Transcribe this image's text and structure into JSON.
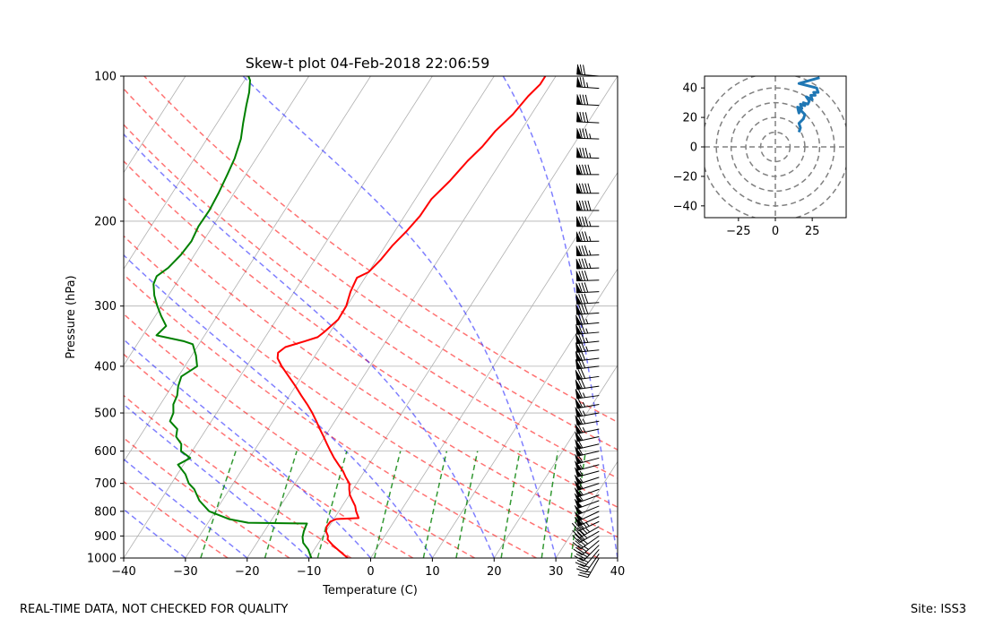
{
  "chart_data": [
    {
      "type": "line",
      "title": "Skew-t plot 04-Feb-2018 22:06:59",
      "xlabel": "Temperature (C)",
      "ylabel": "Pressure (hPa)",
      "xlim": [
        -40,
        40
      ],
      "ylim": [
        1000,
        100
      ],
      "y_scale": "log",
      "skew_deg_per_decade": 50,
      "xticks": [
        -40,
        -30,
        -20,
        -10,
        0,
        10,
        20,
        30,
        40
      ],
      "xtick_labels": [
        "−40",
        "−30",
        "−20",
        "−10",
        "0",
        "10",
        "20",
        "30",
        "40"
      ],
      "yticks": [
        1000,
        900,
        800,
        700,
        600,
        500,
        400,
        300,
        200,
        100
      ],
      "ytick_labels": [
        "1000",
        "900",
        "800",
        "700",
        "600",
        "500",
        "400",
        "300",
        "200",
        "100"
      ],
      "grid": true,
      "series": [
        {
          "name": "temperature",
          "color": "#ff0000",
          "points": [
            [
              1000,
              -3.7
            ],
            [
              970,
              -5.6
            ],
            [
              940,
              -7.5
            ],
            [
              915,
              -8.9
            ],
            [
              900,
              -9.2
            ],
            [
              880,
              -10.0
            ],
            [
              860,
              -10.4
            ],
            [
              840,
              -10.3
            ],
            [
              830,
              -9.6
            ],
            [
              826,
              -6.1
            ],
            [
              800,
              -7.2
            ],
            [
              780,
              -7.9
            ],
            [
              760,
              -8.9
            ],
            [
              740,
              -9.9
            ],
            [
              720,
              -10.6
            ],
            [
              700,
              -11.2
            ],
            [
              680,
              -12.4
            ],
            [
              660,
              -13.5
            ],
            [
              640,
              -14.9
            ],
            [
              620,
              -16.3
            ],
            [
              600,
              -17.6
            ],
            [
              580,
              -18.9
            ],
            [
              560,
              -20.2
            ],
            [
              540,
              -21.6
            ],
            [
              520,
              -23.0
            ],
            [
              500,
              -24.5
            ],
            [
              480,
              -26.2
            ],
            [
              460,
              -28.1
            ],
            [
              440,
              -30.0
            ],
            [
              420,
              -32.1
            ],
            [
              400,
              -34.3
            ],
            [
              385,
              -35.8
            ],
            [
              375,
              -36.3
            ],
            [
              365,
              -35.7
            ],
            [
              355,
              -33.2
            ],
            [
              348,
              -31.5
            ],
            [
              340,
              -31.0
            ],
            [
              320,
              -30.0
            ],
            [
              300,
              -30.1
            ],
            [
              280,
              -30.9
            ],
            [
              262,
              -31.3
            ],
            [
              255,
              -30.0
            ],
            [
              240,
              -29.3
            ],
            [
              225,
              -28.9
            ],
            [
              210,
              -28.1
            ],
            [
              195,
              -27.5
            ],
            [
              180,
              -27.4
            ],
            [
              165,
              -26.3
            ],
            [
              150,
              -25.5
            ],
            [
              140,
              -24.6
            ],
            [
              130,
              -24.1
            ],
            [
              120,
              -23.0
            ],
            [
              110,
              -22.4
            ],
            [
              104,
              -21.7
            ],
            [
              100,
              -21.7
            ]
          ]
        },
        {
          "name": "dewpoint",
          "color": "#008000",
          "points": [
            [
              1000,
              -9.6
            ],
            [
              960,
              -11.0
            ],
            [
              930,
              -12.5
            ],
            [
              905,
              -13.2
            ],
            [
              880,
              -13.6
            ],
            [
              860,
              -13.8
            ],
            [
              848,
              -13.9
            ],
            [
              845,
              -23.5
            ],
            [
              830,
              -27.0
            ],
            [
              800,
              -31.0
            ],
            [
              760,
              -33.7
            ],
            [
              720,
              -35.7
            ],
            [
              700,
              -37.2
            ],
            [
              670,
              -38.7
            ],
            [
              640,
              -40.9
            ],
            [
              620,
              -39.6
            ],
            [
              600,
              -41.8
            ],
            [
              580,
              -42.5
            ],
            [
              560,
              -44.1
            ],
            [
              540,
              -44.7
            ],
            [
              520,
              -46.7
            ],
            [
              500,
              -47.0
            ],
            [
              480,
              -47.9
            ],
            [
              460,
              -48.2
            ],
            [
              440,
              -49.0
            ],
            [
              420,
              -49.5
            ],
            [
              400,
              -48.0
            ],
            [
              380,
              -49.3
            ],
            [
              360,
              -51.0
            ],
            [
              355,
              -52.7
            ],
            [
              345,
              -57.8
            ],
            [
              330,
              -57.2
            ],
            [
              315,
              -59.0
            ],
            [
              300,
              -60.7
            ],
            [
              285,
              -62.3
            ],
            [
              270,
              -63.6
            ],
            [
              260,
              -63.9
            ],
            [
              250,
              -62.9
            ],
            [
              235,
              -62.2
            ],
            [
              220,
              -61.9
            ],
            [
              205,
              -62.3
            ],
            [
              190,
              -62.2
            ],
            [
              175,
              -62.5
            ],
            [
              160,
              -63.0
            ],
            [
              148,
              -63.5
            ],
            [
              135,
              -64.5
            ],
            [
              125,
              -65.8
            ],
            [
              115,
              -67.1
            ],
            [
              108,
              -68.0
            ],
            [
              102,
              -69.1
            ],
            [
              100,
              -69.8
            ]
          ]
        }
      ],
      "reference_lines": {
        "dry_adiabats_theta_k": [
          250,
          260,
          270,
          280,
          290,
          300,
          310,
          320,
          330,
          340,
          350,
          360
        ],
        "dry_adiabat_color": "#ff0000",
        "moist_adiabat_start_temps_c": [
          -40,
          -30,
          -20,
          -10,
          0,
          10,
          20,
          30,
          40
        ],
        "moist_adiabat_color": "#0000ff",
        "mixing_ratio_g_per_kg": [
          0.4,
          1,
          2,
          4,
          7,
          10,
          16,
          24,
          32
        ],
        "mixing_ratio_color": "#008000",
        "mixing_ratio_top_hpa": 600
      },
      "wind_barbs": {
        "color": "#000000",
        "x_position_temperature_c": 37,
        "points": [
          [
            1000,
            210,
            25
          ],
          [
            980,
            215,
            30
          ],
          [
            960,
            220,
            30
          ],
          [
            940,
            225,
            35
          ],
          [
            920,
            230,
            35
          ],
          [
            900,
            235,
            40
          ],
          [
            880,
            240,
            40
          ],
          [
            860,
            240,
            45
          ],
          [
            840,
            245,
            45
          ],
          [
            820,
            245,
            50
          ],
          [
            800,
            245,
            50
          ],
          [
            780,
            248,
            50
          ],
          [
            760,
            250,
            50
          ],
          [
            740,
            250,
            55
          ],
          [
            720,
            250,
            55
          ],
          [
            700,
            252,
            55
          ],
          [
            680,
            252,
            55
          ],
          [
            660,
            255,
            55
          ],
          [
            640,
            255,
            55
          ],
          [
            620,
            255,
            60
          ],
          [
            600,
            257,
            60
          ],
          [
            580,
            257,
            60
          ],
          [
            560,
            258,
            60
          ],
          [
            540,
            258,
            65
          ],
          [
            520,
            260,
            65
          ],
          [
            500,
            260,
            65
          ],
          [
            480,
            260,
            65
          ],
          [
            460,
            262,
            65
          ],
          [
            440,
            262,
            70
          ],
          [
            420,
            262,
            70
          ],
          [
            400,
            263,
            70
          ],
          [
            385,
            263,
            70
          ],
          [
            370,
            264,
            75
          ],
          [
            355,
            264,
            75
          ],
          [
            340,
            265,
            75
          ],
          [
            325,
            265,
            75
          ],
          [
            310,
            266,
            80
          ],
          [
            295,
            266,
            80
          ],
          [
            280,
            267,
            80
          ],
          [
            265,
            268,
            80
          ],
          [
            250,
            268,
            85
          ],
          [
            235,
            268,
            85
          ],
          [
            220,
            269,
            85
          ],
          [
            205,
            270,
            85
          ],
          [
            190,
            270,
            90
          ],
          [
            175,
            270,
            90
          ],
          [
            160,
            270,
            90
          ],
          [
            148,
            272,
            85
          ],
          [
            135,
            272,
            85
          ],
          [
            125,
            273,
            80
          ],
          [
            115,
            273,
            80
          ],
          [
            106,
            274,
            75
          ],
          [
            100,
            275,
            70
          ]
        ]
      }
    },
    {
      "type": "hodograph",
      "xlim": [
        -48,
        48
      ],
      "ylim": [
        -48,
        48
      ],
      "xticks": [
        -25,
        0,
        25
      ],
      "xtick_labels": [
        "−25",
        "0",
        "25"
      ],
      "yticks": [
        40,
        20,
        0,
        -20,
        -40
      ],
      "ytick_labels": [
        "40",
        "20",
        "0",
        "−20",
        "−40"
      ],
      "range_rings": [
        10,
        20,
        30,
        40,
        50
      ],
      "line_color": "#1f77b4",
      "points": [
        [
          16,
          10
        ],
        [
          17,
          13
        ],
        [
          16,
          16
        ],
        [
          19,
          19
        ],
        [
          20,
          22
        ],
        [
          17,
          25
        ],
        [
          16,
          23
        ],
        [
          15,
          27
        ],
        [
          18,
          26
        ],
        [
          17,
          29
        ],
        [
          20,
          28
        ],
        [
          19,
          30
        ],
        [
          22,
          29
        ],
        [
          23,
          31
        ],
        [
          21,
          34
        ],
        [
          25,
          32
        ],
        [
          24,
          35
        ],
        [
          27,
          35
        ],
        [
          26,
          37
        ],
        [
          29,
          37
        ],
        [
          28,
          40
        ],
        [
          16,
          43
        ],
        [
          30,
          47
        ]
      ]
    }
  ],
  "footer": {
    "left": "REAL-TIME DATA, NOT CHECKED FOR QUALITY",
    "right": "Site: ISS3"
  }
}
